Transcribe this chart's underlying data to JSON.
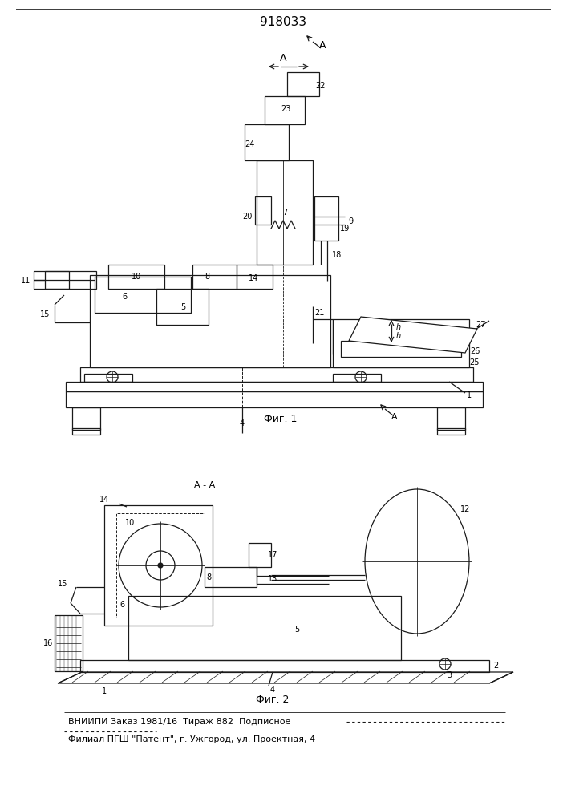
{
  "title": "918033",
  "title_fontsize": 11,
  "footer_line1": "ВНИИПИ Заказ 1981/16  Тираж 882  Подписное",
  "footer_line2": "Филиал ПГШ \"Патент\", г. Ужгород, ул. Проектная, 4",
  "fig1_caption": "Фиг. 1",
  "fig2_caption": "Фиг. 2",
  "bg_color": "#ffffff",
  "line_color": "#1a1a1a",
  "line_width": 0.9
}
